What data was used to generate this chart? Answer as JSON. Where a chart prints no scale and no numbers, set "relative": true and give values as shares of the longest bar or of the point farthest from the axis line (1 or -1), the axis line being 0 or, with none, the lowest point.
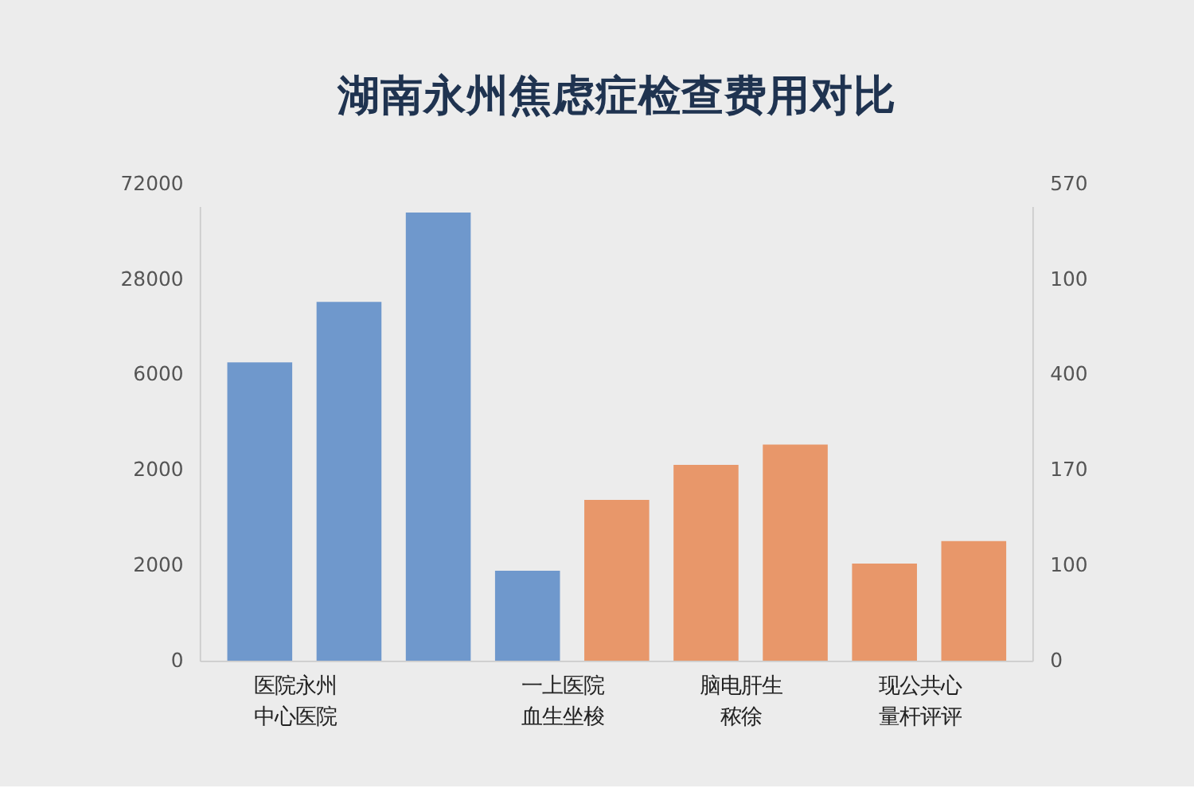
{
  "chart_data": {
    "type": "bar",
    "title": "湖南永州焦虑症检查费用对比",
    "categories": [
      "医院永州中心医院",
      null,
      null,
      "一上医院血生坐梭",
      null,
      "脑电肝生秾徐",
      null,
      "现公共心量杆评评",
      null
    ],
    "relative": true,
    "values": [
      0.666,
      0.801,
      1,
      0.202,
      0.36,
      0.438,
      0.483,
      0.218,
      0.268
    ],
    "colors": [
      "#6f98cc",
      "#6f98cc",
      "#6f98cc",
      "#6f98cc",
      "#e8976a",
      "#e8976a",
      "#e8976a",
      "#e8976a",
      "#e8976a"
    ],
    "annotations": [
      "0",
      "2000",
      "2000",
      "6000",
      "28000",
      "72000",
      "0",
      "100",
      "170",
      "400",
      "100",
      "570"
    ]
  }
}
